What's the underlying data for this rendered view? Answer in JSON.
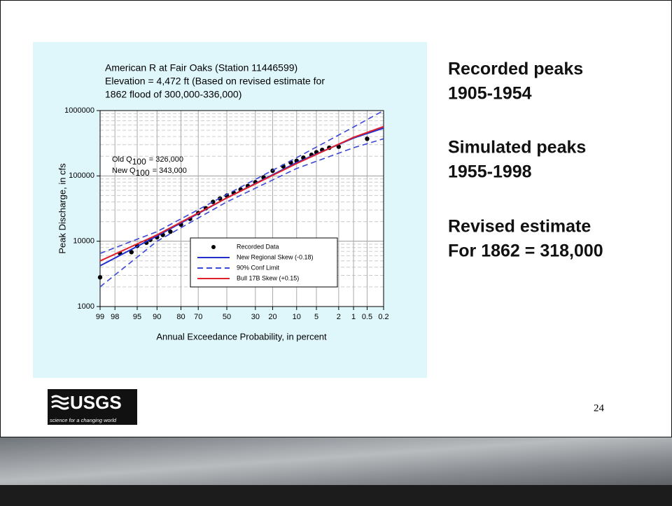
{
  "chart_data": {
    "type": "probability",
    "title": [
      "American R at Fair Oaks (Station 11446599)",
      "Elevation = 4,472 ft (Based on revised estimate for",
      "1862 flood of 300,000-336,000)"
    ],
    "x_label": "Annual Exceedance Probability, in percent",
    "y_label": "Peak Discharge, in cfs",
    "xlim": [
      99,
      0.2
    ],
    "xticks": [
      99,
      98,
      95,
      90,
      80,
      70,
      50,
      30,
      20,
      10,
      5,
      2,
      1,
      0.5,
      0.2
    ],
    "ylim": [
      1000,
      1000000
    ],
    "yticks": [
      1000,
      10000,
      100000,
      1000000
    ],
    "y_log": true,
    "grid": true,
    "annotations": [
      {
        "text": "Old Q",
        "sub": "100",
        "rest": "= 326,000"
      },
      {
        "text": "New Q",
        "sub": "100",
        "rest": "= 343,000"
      }
    ],
    "series": [
      {
        "name": "Recorded Data",
        "color": "#000000",
        "style": "markers",
        "x": [
          99,
          97.5,
          96,
          95,
          93,
          92,
          90,
          88,
          85,
          80,
          75,
          70,
          65,
          60,
          55,
          50,
          45,
          40,
          35,
          30,
          25,
          20,
          15,
          12,
          10,
          8,
          6,
          5,
          4,
          3,
          2,
          0.5
        ],
        "values": [
          2800,
          6500,
          6800,
          8500,
          9500,
          10500,
          11500,
          12500,
          14000,
          18000,
          22000,
          27000,
          32000,
          40000,
          45000,
          50000,
          55000,
          62000,
          70000,
          80000,
          95000,
          120000,
          140000,
          160000,
          170000,
          190000,
          210000,
          230000,
          250000,
          270000,
          280000,
          370000
        ]
      },
      {
        "name": "New Regional Skew (-0.18)",
        "color": "#1f2fd0",
        "style": "solid",
        "x": [
          99,
          90,
          50,
          10,
          1,
          0.2
        ],
        "values": [
          4200,
          12000,
          46000,
          160000,
          380000,
          540000
        ]
      },
      {
        "name": "90% Conf Limit",
        "color": "#3a46d8",
        "style": "dashed",
        "x": [
          99,
          90,
          50,
          10,
          1,
          0.2
        ],
        "values": [
          6500,
          14000,
          52000,
          190000,
          560000,
          1000000
        ],
        "lower": [
          2000,
          10000,
          40000,
          130000,
          270000,
          370000
        ]
      },
      {
        "name": "Bull 17B Skew (+0.15)",
        "color": "#e0202a",
        "style": "solid",
        "x": [
          99,
          90,
          50,
          10,
          1,
          0.2
        ],
        "values": [
          5000,
          12500,
          46000,
          155000,
          390000,
          570000
        ]
      }
    ]
  },
  "side_text": [
    [
      "Recorded peaks",
      "1905-1954"
    ],
    [
      "Simulated peaks",
      "1955-1998"
    ],
    [
      "Revised estimate",
      "For 1862 = 318,000"
    ]
  ],
  "logo": {
    "name": "USGS",
    "tagline": "science for a changing world"
  },
  "page_number": "24"
}
